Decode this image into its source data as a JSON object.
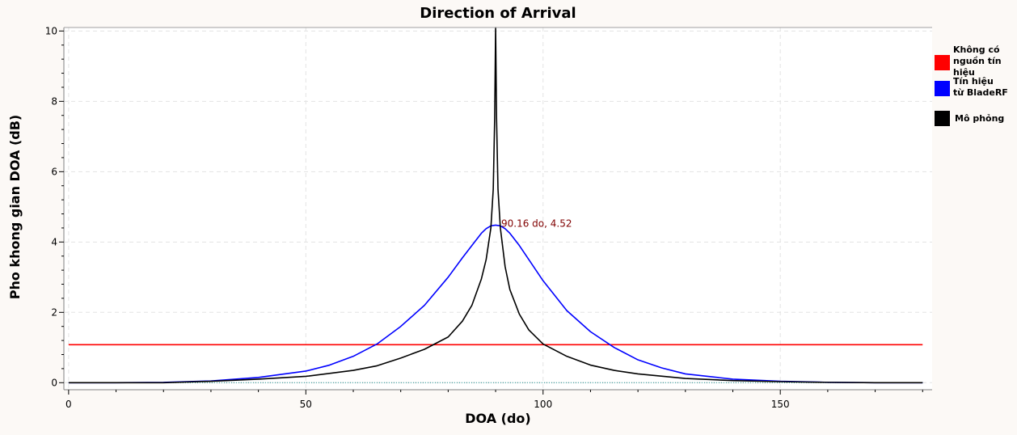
{
  "chart_data": {
    "type": "line",
    "title": "Direction of Arrival",
    "xlabel": "DOA (do)",
    "ylabel": "Pho khong gian DOA (dB)",
    "xlim": [
      -1,
      182
    ],
    "ylim": [
      -0.2,
      10.1
    ],
    "xticks": [
      0,
      50,
      100,
      150
    ],
    "yticks": [
      0,
      2,
      4,
      6,
      8,
      10
    ],
    "grid": true,
    "legend_position": "right",
    "annotation": {
      "text": "90.16 do, 4.52",
      "x": 90.16,
      "y": 4.52,
      "color": "#800000"
    },
    "series": [
      {
        "name": "Không có\nnguồn tín hiệu",
        "color": "#ff0000",
        "x": [
          0,
          180
        ],
        "y": [
          1.08,
          1.08
        ]
      },
      {
        "name": "Tín hiệu\ntừ BladeRF",
        "color": "#0000ff",
        "x": [
          0,
          10,
          20,
          30,
          40,
          50,
          55,
          60,
          65,
          70,
          75,
          80,
          83,
          85,
          87,
          88,
          89,
          90,
          91,
          92,
          93,
          95,
          97,
          100,
          105,
          110,
          115,
          120,
          125,
          130,
          140,
          150,
          160,
          170,
          180
        ],
        "y": [
          0,
          0,
          0.01,
          0.05,
          0.15,
          0.33,
          0.5,
          0.75,
          1.1,
          1.6,
          2.2,
          3.0,
          3.55,
          3.9,
          4.25,
          4.38,
          4.46,
          4.48,
          4.46,
          4.38,
          4.25,
          3.9,
          3.5,
          2.9,
          2.05,
          1.45,
          1.0,
          0.65,
          0.42,
          0.25,
          0.1,
          0.04,
          0.01,
          0,
          0
        ]
      },
      {
        "name": "Mô phỏng",
        "color": "#000000",
        "x": [
          0,
          10,
          20,
          30,
          40,
          50,
          60,
          65,
          70,
          75,
          80,
          83,
          85,
          87,
          88,
          89,
          89.5,
          89.8,
          90,
          90.2,
          90.5,
          91,
          92,
          93,
          95,
          97,
          100,
          105,
          110,
          115,
          120,
          130,
          140,
          150,
          160,
          170,
          180
        ],
        "y": [
          0,
          0,
          0,
          0.04,
          0.1,
          0.18,
          0.35,
          0.48,
          0.7,
          0.95,
          1.3,
          1.75,
          2.2,
          2.95,
          3.5,
          4.4,
          5.5,
          7.5,
          10.1,
          7.5,
          5.5,
          4.4,
          3.3,
          2.65,
          1.95,
          1.5,
          1.1,
          0.75,
          0.5,
          0.35,
          0.25,
          0.12,
          0.06,
          0.03,
          0.01,
          0,
          0
        ]
      },
      {
        "name": "",
        "color": "#008080",
        "x": [
          0,
          180
        ],
        "y": [
          0,
          0
        ]
      }
    ]
  }
}
